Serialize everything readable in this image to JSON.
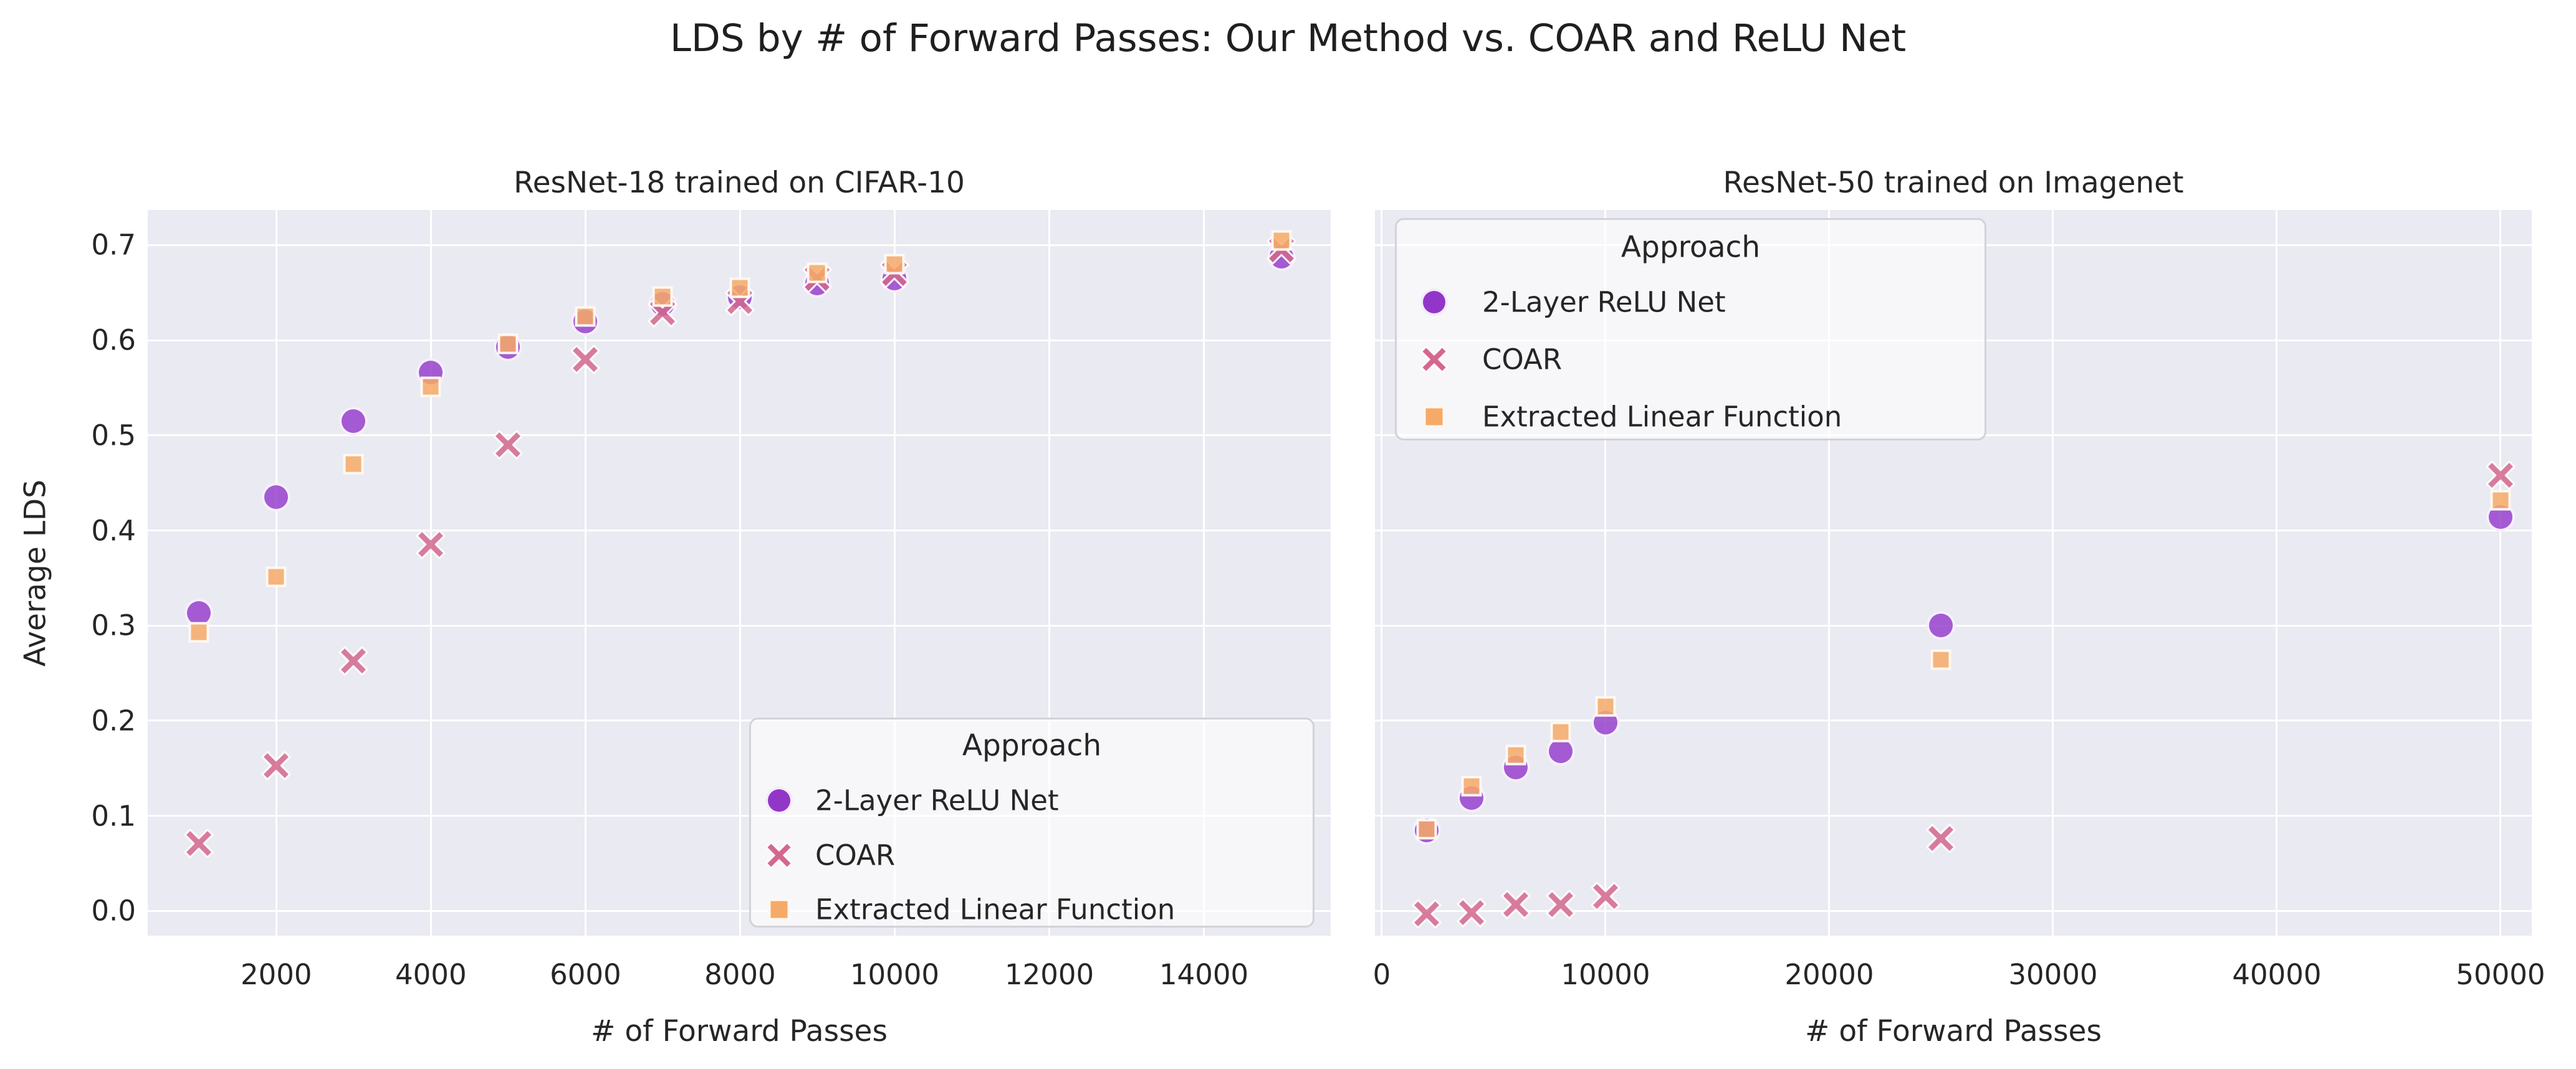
{
  "figure": {
    "suptitle": "LDS by # of Forward Passes: Our Method vs. COAR and ReLU Net",
    "background": "#ffffff",
    "axes_background": "#eaeaf2",
    "grid_color": "#ffffff",
    "text_color": "#262626"
  },
  "legend": {
    "title": "Approach",
    "entries": [
      {
        "label": "2-Layer ReLU Net",
        "marker": "circle",
        "color": "#9236c9"
      },
      {
        "label": "COAR",
        "marker": "x",
        "color": "#d4678d"
      },
      {
        "label": "Extracted Linear Function",
        "marker": "square",
        "color": "#f6aa67"
      }
    ]
  },
  "chart_data": [
    {
      "type": "scatter",
      "title": "ResNet-18 trained on CIFAR-10",
      "xlabel": "# of Forward Passes",
      "ylabel": "Average LDS",
      "x_ticks": [
        2000,
        4000,
        6000,
        8000,
        10000,
        12000,
        14000
      ],
      "y_ticks": [
        0.0,
        0.1,
        0.2,
        0.3,
        0.4,
        0.5,
        0.6,
        0.7
      ],
      "xlim": [
        337,
        15640
      ],
      "ylim": [
        -0.026,
        0.737
      ],
      "grid": true,
      "legend_position": "lower right",
      "x": [
        1000,
        2000,
        3000,
        4000,
        5000,
        6000,
        7000,
        8000,
        9000,
        10000,
        15000
      ],
      "series": [
        {
          "name": "2-Layer ReLU Net",
          "values": [
            0.313,
            0.435,
            0.515,
            0.566,
            0.593,
            0.62,
            0.638,
            0.645,
            0.66,
            0.665,
            0.688
          ]
        },
        {
          "name": "COAR",
          "values": [
            0.071,
            0.153,
            0.263,
            0.385,
            0.49,
            0.58,
            0.629,
            0.641,
            0.665,
            0.67,
            0.695
          ]
        },
        {
          "name": "Extracted Linear Function",
          "values": [
            0.293,
            0.351,
            0.47,
            0.551,
            0.596,
            0.625,
            0.646,
            0.655,
            0.671,
            0.68,
            0.705
          ]
        }
      ]
    },
    {
      "type": "scatter",
      "title": "ResNet-50 trained on Imagenet",
      "xlabel": "# of Forward Passes",
      "ylabel": "",
      "x_ticks": [
        0,
        10000,
        20000,
        30000,
        40000,
        50000
      ],
      "y_ticks": [
        0.0,
        0.1,
        0.2,
        0.3,
        0.4,
        0.5,
        0.6,
        0.7
      ],
      "xlim": [
        -306,
        51393
      ],
      "ylim": [
        -0.026,
        0.737
      ],
      "grid": true,
      "legend_position": "upper left",
      "x": [
        2000,
        4000,
        6000,
        8000,
        10000,
        25000,
        50000
      ],
      "series": [
        {
          "name": "2-Layer ReLU Net",
          "values": [
            0.085,
            0.119,
            0.151,
            0.168,
            0.198,
            0.3,
            0.414
          ]
        },
        {
          "name": "COAR",
          "values": [
            -0.003,
            -0.002,
            0.007,
            0.007,
            0.015,
            0.076,
            0.458
          ]
        },
        {
          "name": "Extracted Linear Function",
          "values": [
            0.086,
            0.131,
            0.164,
            0.188,
            0.215,
            0.264,
            0.432
          ]
        }
      ]
    }
  ]
}
